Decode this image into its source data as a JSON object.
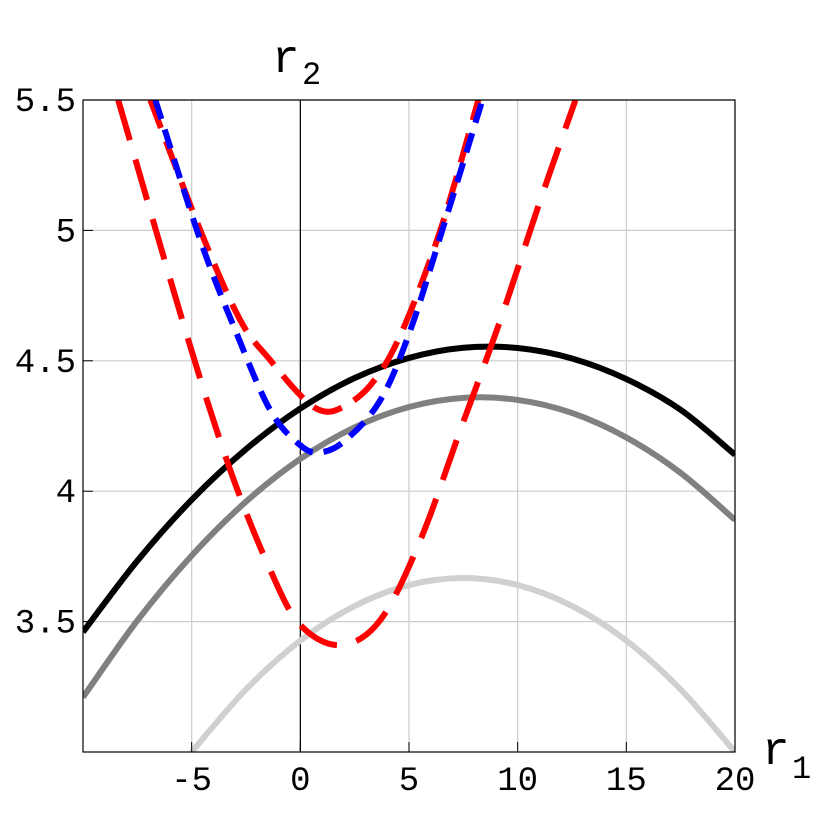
{
  "chart_data": {
    "type": "line",
    "xlabel": "r",
    "xlabel_sub": "1",
    "ylabel": "r",
    "ylabel_sub": "2",
    "xlim": [
      -10,
      20
    ],
    "ylim": [
      3,
      5.5
    ],
    "xticks": [
      -5,
      0,
      5,
      10,
      15,
      20
    ],
    "yticks": [
      {
        "value": 3.5,
        "label": "3.5"
      },
      4,
      {
        "value": 4.5,
        "label": "4.5"
      },
      5,
      {
        "value": 5.5,
        "label": "5.5"
      }
    ],
    "grid": true,
    "grid_color": "#cccccc",
    "series": [
      {
        "color": "#d0d0d0",
        "dash": "solid",
        "x": [
          -5,
          -2.5,
          0,
          2.5,
          5,
          7.5,
          10,
          12.5,
          15,
          17.5,
          20
        ],
        "values": [
          3.0,
          3.24,
          3.427,
          3.56,
          3.64,
          3.667,
          3.64,
          3.56,
          3.427,
          3.24,
          3.0
        ]
      },
      {
        "color": "#808080",
        "dash": "solid",
        "x": [
          -10,
          -7.5,
          -5,
          -2.5,
          0,
          2.5,
          5,
          7.5,
          10,
          12.5,
          15,
          17.5,
          20
        ],
        "values": [
          3.21,
          3.504,
          3.753,
          3.96,
          4.124,
          4.245,
          4.323,
          4.358,
          4.35,
          4.3,
          4.206,
          4.07,
          3.89
        ]
      },
      {
        "color": "#000000",
        "dash": "solid",
        "x": [
          -10,
          -7.5,
          -5,
          -2.5,
          0,
          2.5,
          5,
          7.5,
          10,
          12.5,
          15,
          17.5,
          20
        ],
        "values": [
          3.46,
          3.733,
          3.967,
          4.161,
          4.317,
          4.434,
          4.511,
          4.55,
          4.549,
          4.509,
          4.43,
          4.312,
          4.14
        ]
      },
      {
        "color": "#ff0000",
        "dash": "long",
        "x": [
          -8.38,
          -5.29,
          -3.22,
          -1.38,
          0,
          1.84,
          3.68,
          5.52,
          7.36,
          9.2,
          11.04,
          12.66
        ],
        "values": [
          5.5,
          4.617,
          4.08,
          3.697,
          3.487,
          3.41,
          3.506,
          3.812,
          4.234,
          4.655,
          5.115,
          5.5
        ]
      },
      {
        "color": "#ff0000",
        "dash": "medium",
        "x": [
          -6.9,
          -4.6,
          -2.76,
          -1.38,
          0,
          0.92,
          1.84,
          3.22,
          4.6,
          6.44,
          8.19
        ],
        "values": [
          5.5,
          5.0,
          4.655,
          4.502,
          4.368,
          4.31,
          4.318,
          4.406,
          4.598,
          5.0,
          5.5
        ]
      },
      {
        "color": "#0000ff",
        "dash": "short",
        "x": [
          -6.67,
          -4.6,
          -2.99,
          -1.38,
          0,
          0.92,
          2.07,
          3.68,
          5.06,
          6.67,
          8.38
        ],
        "values": [
          5.5,
          4.962,
          4.617,
          4.31,
          4.176,
          4.149,
          4.195,
          4.349,
          4.617,
          5.038,
          5.5
        ]
      }
    ]
  }
}
